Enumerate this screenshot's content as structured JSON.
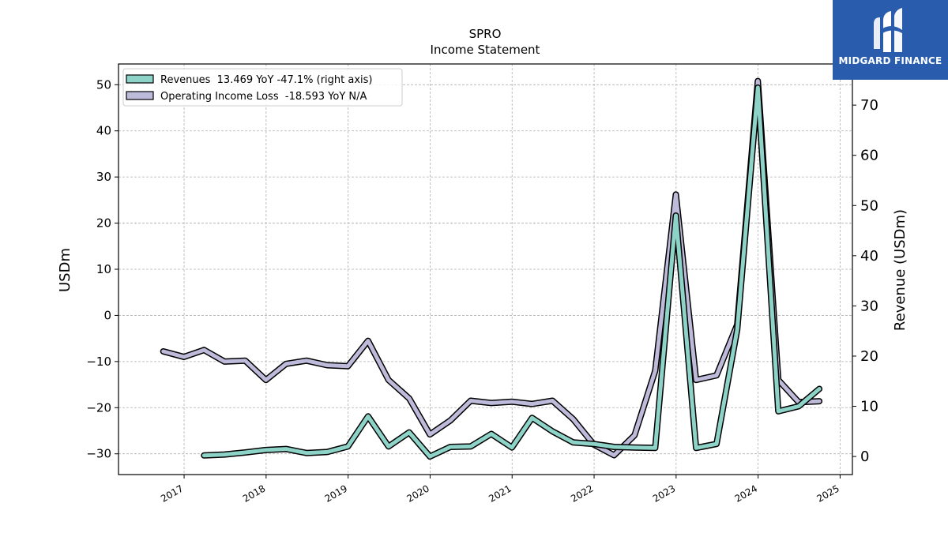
{
  "chart_data": {
    "type": "line",
    "title": "SPRO",
    "subtitle": "Income Statement",
    "ylabel": "USDm",
    "ylabel_right": "Revenue (USDm)",
    "ylim_left": [
      -34.5,
      54.5
    ],
    "ylim_right": [
      -3.6,
      78.2
    ],
    "xlim": [
      2016.2,
      2025.15
    ],
    "yticks_left": [
      -30,
      -20,
      -10,
      0,
      10,
      20,
      30,
      40,
      50
    ],
    "ytick_labels_left": [
      "−30",
      "−20",
      "−10",
      "0",
      "10",
      "20",
      "30",
      "40",
      "50"
    ],
    "yticks_right": [
      0,
      10,
      20,
      30,
      40,
      50,
      60,
      70
    ],
    "ytick_labels_right": [
      "0",
      "10",
      "20",
      "30",
      "40",
      "50",
      "60",
      "70"
    ],
    "xticks": [
      "2017",
      "2018",
      "2019",
      "2020",
      "2021",
      "2022",
      "2023",
      "2024",
      "2025"
    ],
    "grid": true,
    "legend_position": "top-left",
    "series": [
      {
        "name": "Revenues  13.469 YoY -47.1% (right axis)",
        "axis": "right",
        "color": "#8dd3c7",
        "x": [
          "2017-03-31",
          "2017-06-30",
          "2017-09-30",
          "2017-12-31",
          "2018-03-31",
          "2018-06-30",
          "2018-09-30",
          "2018-12-31",
          "2019-03-31",
          "2019-06-30",
          "2019-09-30",
          "2019-12-31",
          "2020-03-31",
          "2020-06-30",
          "2020-09-30",
          "2020-12-31",
          "2021-03-31",
          "2021-06-30",
          "2021-09-30",
          "2021-12-31",
          "2022-03-31",
          "2022-06-30",
          "2022-09-30",
          "2022-12-31",
          "2023-03-31",
          "2023-06-30",
          "2023-09-30",
          "2023-12-31",
          "2024-03-31",
          "2024-06-30",
          "2024-09-30"
        ],
        "values": [
          0.2,
          0.4,
          0.8,
          1.3,
          1.5,
          0.7,
          0.9,
          2.0,
          8.0,
          2.0,
          4.8,
          0.0,
          1.9,
          2.0,
          4.5,
          1.8,
          7.7,
          5.0,
          2.8,
          2.5,
          1.9,
          1.8,
          1.7,
          48.0,
          1.7,
          2.5,
          25.3,
          73.5,
          9.0,
          10.0,
          13.469
        ]
      },
      {
        "name": "Operating Income Loss  -18.593 YoY N/A",
        "axis": "left",
        "color": "#bebada",
        "x": [
          "2016-09-30",
          "2016-12-31",
          "2017-03-31",
          "2017-06-30",
          "2017-09-30",
          "2017-12-31",
          "2018-03-31",
          "2018-06-30",
          "2018-09-30",
          "2018-12-31",
          "2019-03-31",
          "2019-06-30",
          "2019-09-30",
          "2019-12-31",
          "2020-03-31",
          "2020-06-30",
          "2020-09-30",
          "2020-12-31",
          "2021-03-31",
          "2021-06-30",
          "2021-09-30",
          "2021-12-31",
          "2022-03-31",
          "2022-06-30",
          "2022-09-30",
          "2022-12-31",
          "2023-03-31",
          "2023-06-30",
          "2023-09-30",
          "2023-12-31",
          "2024-03-31",
          "2024-06-30",
          "2024-09-30"
        ],
        "values": [
          -7.8,
          -9.0,
          -7.5,
          -10.0,
          -9.8,
          -14.0,
          -10.5,
          -9.8,
          -10.8,
          -11.0,
          -5.5,
          -14.0,
          -18.0,
          -25.8,
          -22.8,
          -18.5,
          -19.0,
          -18.7,
          -19.2,
          -18.5,
          -22.5,
          -28.0,
          -30.3,
          -26.0,
          -12.0,
          26.2,
          -14.0,
          -13.0,
          -2.0,
          50.8,
          -14.0,
          -18.8,
          -18.593
        ]
      }
    ]
  },
  "brand": {
    "name": "MIDGARD FINANCE",
    "bg_color": "#2a5cad"
  }
}
